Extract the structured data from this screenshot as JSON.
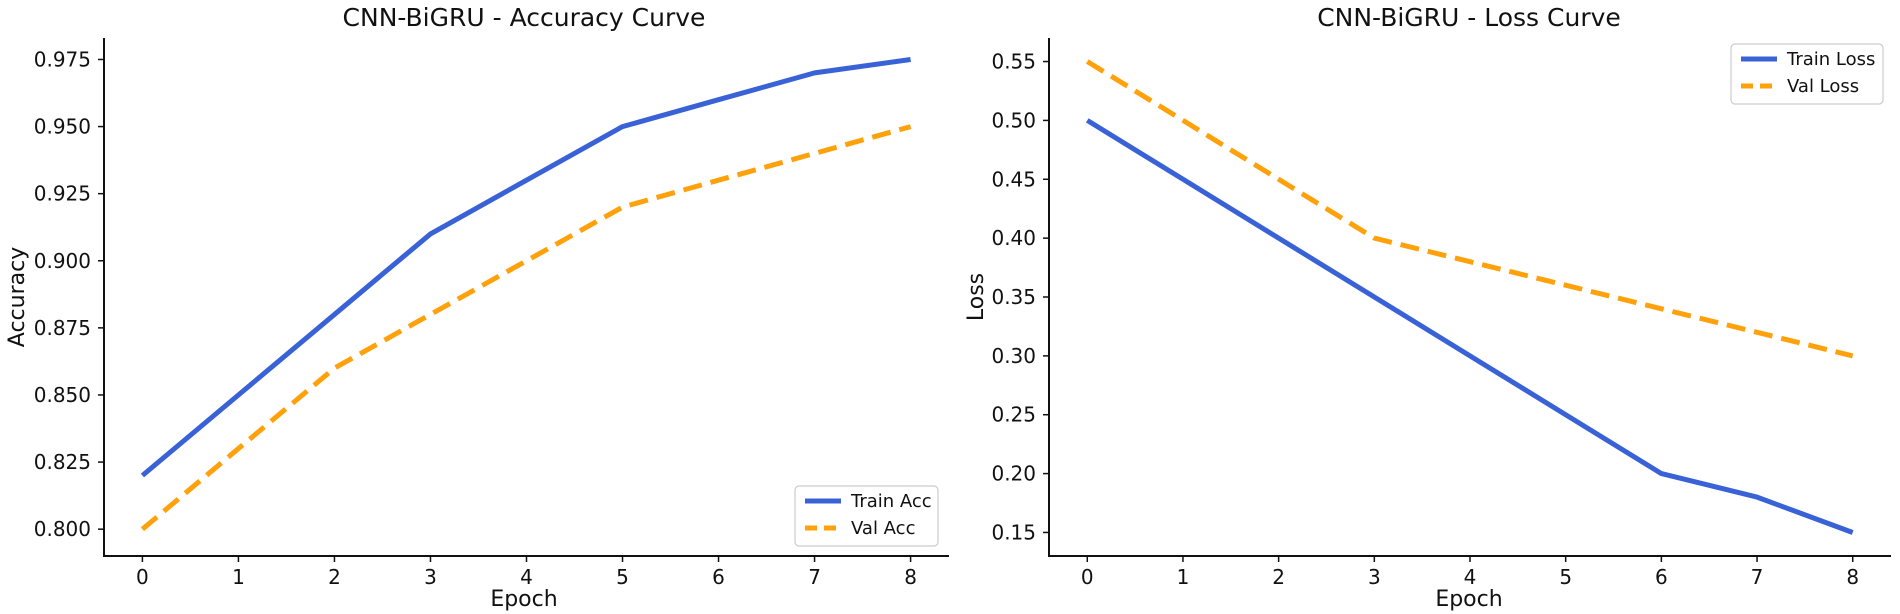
{
  "chart_data": [
    {
      "type": "line",
      "title": "CNN-BiGRU - Accuracy Curve",
      "xlabel": "Epoch",
      "ylabel": "Accuracy",
      "x": [
        0,
        1,
        2,
        3,
        4,
        5,
        6,
        7,
        8
      ],
      "xticks": [
        "0",
        "1",
        "2",
        "3",
        "4",
        "5",
        "6",
        "7",
        "8"
      ],
      "yticks": [
        "0.800",
        "0.825",
        "0.850",
        "0.875",
        "0.900",
        "0.925",
        "0.950",
        "0.975"
      ],
      "ylim": [
        0.79,
        0.983
      ],
      "xlim": [
        -0.4,
        8.4
      ],
      "grid": false,
      "legend_position": "lower-right",
      "series": [
        {
          "name": "Train Acc",
          "values": [
            0.82,
            0.85,
            0.88,
            0.91,
            0.93,
            0.95,
            0.96,
            0.97,
            0.975
          ],
          "color": "#3a62d7",
          "style": "solid"
        },
        {
          "name": "Val Acc",
          "values": [
            0.8,
            0.83,
            0.86,
            0.88,
            0.9,
            0.92,
            0.93,
            0.94,
            0.95
          ],
          "color": "#ffa10a",
          "style": "dashed"
        }
      ]
    },
    {
      "type": "line",
      "title": "CNN-BiGRU - Loss Curve",
      "xlabel": "Epoch",
      "ylabel": "Loss",
      "x": [
        0,
        1,
        2,
        3,
        4,
        5,
        6,
        7,
        8
      ],
      "xticks": [
        "0",
        "1",
        "2",
        "3",
        "4",
        "5",
        "6",
        "7",
        "8"
      ],
      "yticks": [
        "0.15",
        "0.20",
        "0.25",
        "0.30",
        "0.35",
        "0.40",
        "0.45",
        "0.50",
        "0.55"
      ],
      "ylim": [
        0.13,
        0.57
      ],
      "xlim": [
        -0.4,
        8.4
      ],
      "grid": false,
      "legend_position": "upper-right",
      "series": [
        {
          "name": "Train Loss",
          "values": [
            0.5,
            0.45,
            0.4,
            0.35,
            0.3,
            0.25,
            0.2,
            0.18,
            0.15
          ],
          "color": "#3a62d7",
          "style": "solid"
        },
        {
          "name": "Val Loss",
          "values": [
            0.55,
            0.5,
            0.45,
            0.4,
            0.38,
            0.36,
            0.34,
            0.32,
            0.3
          ],
          "color": "#ffa10a",
          "style": "dashed"
        }
      ]
    }
  ]
}
